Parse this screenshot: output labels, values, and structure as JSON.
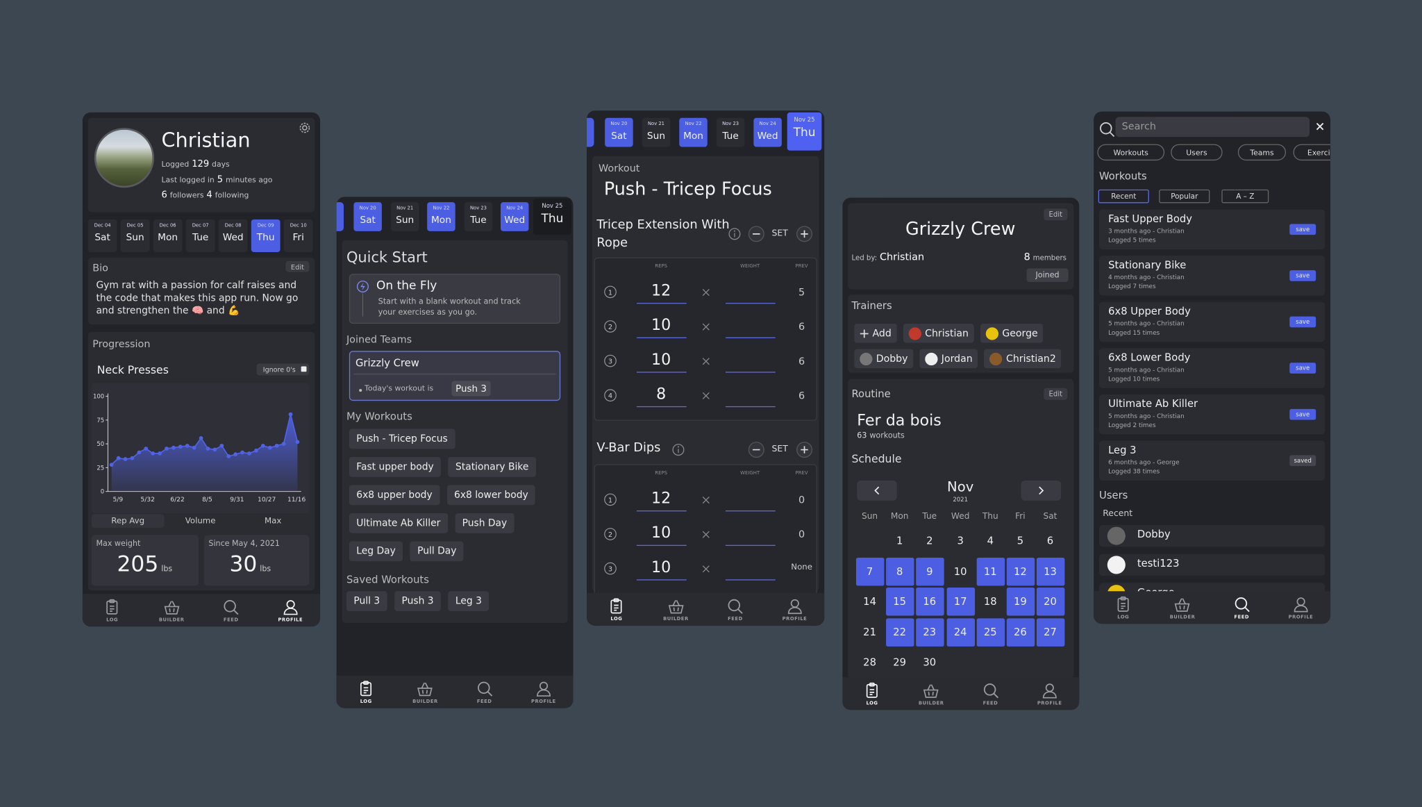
{
  "nav": [
    "LOG",
    "BUILDER",
    "FEED",
    "PROFILE"
  ],
  "profile": {
    "nav_active": 3,
    "name": "Christian",
    "logged": [
      "Logged",
      "129",
      "days"
    ],
    "last_login": [
      "Last logged in",
      "5",
      "minutes ago"
    ],
    "follows": [
      "6",
      "followers",
      "4",
      "following"
    ],
    "days": [
      {
        "date": "Dec 04",
        "day": "Sat"
      },
      {
        "date": "Dec 05",
        "day": "Sun"
      },
      {
        "date": "Dec 06",
        "day": "Mon"
      },
      {
        "date": "Dec 07",
        "day": "Tue"
      },
      {
        "date": "Dec 08",
        "day": "Wed"
      },
      {
        "date": "Dec 09",
        "day": "Thu"
      },
      {
        "date": "Dec 10",
        "day": "Fri"
      }
    ],
    "selected_day": 5,
    "bio_title": "Bio",
    "bio_edit": "Edit",
    "bio": "Gym rat with a passion for calf raises and the code that makes this app run. Now go and strengthen the 🧠 and 💪",
    "progression": "Progression",
    "exercise": "Neck Presses",
    "ignore_zeros": "Ignore 0's",
    "chart": {
      "type": "line",
      "color": "#5062e6",
      "values": [
        28,
        35,
        34,
        35,
        41,
        45,
        40,
        40,
        45,
        46,
        47,
        48,
        46,
        56,
        45,
        44,
        48,
        37,
        39,
        41,
        40,
        43,
        48,
        46,
        48,
        50,
        81,
        52
      ],
      "ylim": [
        0,
        100
      ],
      "yticks": [
        0,
        25,
        50,
        75,
        100
      ],
      "xlabels": [
        "5/9",
        "5/32",
        "6/22",
        "8/5",
        "9/31",
        "10/27",
        "11/16"
      ]
    },
    "tabs": [
      "Rep Avg",
      "Volume",
      "Max"
    ],
    "selected_tab": 0,
    "stats": [
      {
        "label": "Max weight",
        "value": 205,
        "unit": "lbs"
      },
      {
        "label": "Since May 4, 2021",
        "value": 30,
        "unit": "lbs"
      }
    ]
  },
  "builder": {
    "nav_active": 0,
    "days": [
      {
        "date": "Nov 20",
        "day": "Sat"
      },
      {
        "date": "Nov 21",
        "day": "Sun"
      },
      {
        "date": "Nov 22",
        "day": "Mon"
      },
      {
        "date": "Nov 23",
        "day": "Tue"
      },
      {
        "date": "Nov 24",
        "day": "Wed"
      },
      {
        "date": "Nov 25",
        "day": "Thu"
      }
    ],
    "selected_days": [
      0,
      2,
      4
    ],
    "current_day": 5,
    "quick_start": "Quick Start",
    "fly_title": "On the Fly",
    "fly_desc": "Start with a blank workout and track your exercises as you go.",
    "joined_teams": "Joined Teams",
    "team": "Grizzly Crew",
    "today": "Today's workout is",
    "today_workout": "Push 3",
    "my_workouts": "My Workouts",
    "workouts": [
      [
        "Push - Tricep Focus"
      ],
      [
        "Fast upper body",
        "Stationary Bike"
      ],
      [
        "6x8 upper body",
        "6x8 lower body"
      ],
      [
        "Ultimate Ab Killer",
        "Push Day"
      ],
      [
        "Leg Day",
        "Pull Day"
      ]
    ],
    "saved_title": "Saved Workouts",
    "saved": [
      "Pull 3",
      "Push 3",
      "Leg 3"
    ]
  },
  "workout": {
    "nav_active": 0,
    "days": [
      {
        "date": "Nov 20",
        "day": "Sat"
      },
      {
        "date": "Nov 21",
        "day": "Sun"
      },
      {
        "date": "Nov 22",
        "day": "Mon"
      },
      {
        "date": "Nov 23",
        "day": "Tue"
      },
      {
        "date": "Nov 24",
        "day": "Wed"
      },
      {
        "date": "Nov 25",
        "day": "Thu"
      }
    ],
    "selected_days": [
      0,
      2,
      4
    ],
    "current_day": 5,
    "label": "Workout",
    "title": "Push - Tricep Focus",
    "set_label": "SET",
    "columns": [
      "REPS",
      "WEIGHT",
      "PREV"
    ],
    "exercises": [
      {
        "name": "Tricep Extension With Rope",
        "sets": [
          {
            "set": 1,
            "reps": 12,
            "prev": 5
          },
          {
            "set": 2,
            "reps": 10,
            "prev": 6
          },
          {
            "set": 3,
            "reps": 10,
            "prev": 6
          },
          {
            "set": 4,
            "reps": 8,
            "prev": 6
          }
        ]
      },
      {
        "name": "V-Bar Dips",
        "sets": [
          {
            "set": 1,
            "reps": 12,
            "prev": 0
          },
          {
            "set": 2,
            "reps": 10,
            "prev": 0
          },
          {
            "set": 3,
            "reps": 10,
            "prev": "None"
          }
        ]
      }
    ]
  },
  "team": {
    "nav_active": 0,
    "edit": "Edit",
    "name": "Grizzly Crew",
    "led_by": "Led by:",
    "leader": "Christian",
    "members": [
      "8",
      "members"
    ],
    "joined": "Joined",
    "trainers_title": "Trainers",
    "add": "Add",
    "trainers": [
      [
        "Christian",
        "George"
      ],
      [
        "Dobby",
        "Jordan",
        "Christian2"
      ]
    ],
    "routine_title": "Routine",
    "routine_edit": "Edit",
    "routine": "Fer da bois",
    "workouts": [
      "63",
      "workouts"
    ],
    "schedule": "Schedule",
    "month": "Nov",
    "year": "2021",
    "weekdays": [
      "Sun",
      "Mon",
      "Tue",
      "Wed",
      "Thu",
      "Fri",
      "Sat"
    ],
    "weeks": [
      [
        null,
        1,
        2,
        3,
        4,
        5,
        6
      ],
      [
        7,
        8,
        9,
        10,
        11,
        12,
        13
      ],
      [
        14,
        15,
        16,
        17,
        18,
        19,
        20
      ],
      [
        21,
        22,
        23,
        24,
        25,
        26,
        27
      ],
      [
        28,
        29,
        30
      ]
    ],
    "selected": [
      7,
      8,
      9,
      11,
      12,
      13,
      15,
      16,
      17,
      19,
      20,
      22,
      23,
      24,
      25,
      26,
      27
    ]
  },
  "search": {
    "nav_active": 2,
    "placeholder": "Search",
    "tabs": [
      "Workouts",
      "Users",
      "Teams",
      "Exercises"
    ],
    "workouts_title": "Workouts",
    "sorts": [
      "Recent",
      "Popular",
      "A – Z"
    ],
    "selected_sort": 0,
    "items": [
      {
        "name": "Fast Upper Body",
        "meta": "3 months ago - Christian",
        "logged": "Logged 5 times",
        "action": "save",
        "saved": false
      },
      {
        "name": "Stationary Bike",
        "meta": "4 months ago - Christian",
        "logged": "Logged 7 times",
        "action": "save",
        "saved": false
      },
      {
        "name": "6x8 Upper Body",
        "meta": "5 months ago - Christian",
        "logged": "Logged 15 times",
        "action": "save",
        "saved": false
      },
      {
        "name": "6x8 Lower Body",
        "meta": "5 months ago - Christian",
        "logged": "Logged 10 times",
        "action": "save",
        "saved": false
      },
      {
        "name": "Ultimate Ab Killer",
        "meta": "5 months ago - Christian",
        "logged": "Logged 2 times",
        "action": "save",
        "saved": false
      },
      {
        "name": "Leg 3",
        "meta": "6 months ago - George",
        "logged": "Logged 38 times",
        "action": "saved",
        "saved": true
      }
    ],
    "users_title": "Users",
    "recent": "Recent",
    "users": [
      "Dobby",
      "testi123",
      "George"
    ]
  }
}
